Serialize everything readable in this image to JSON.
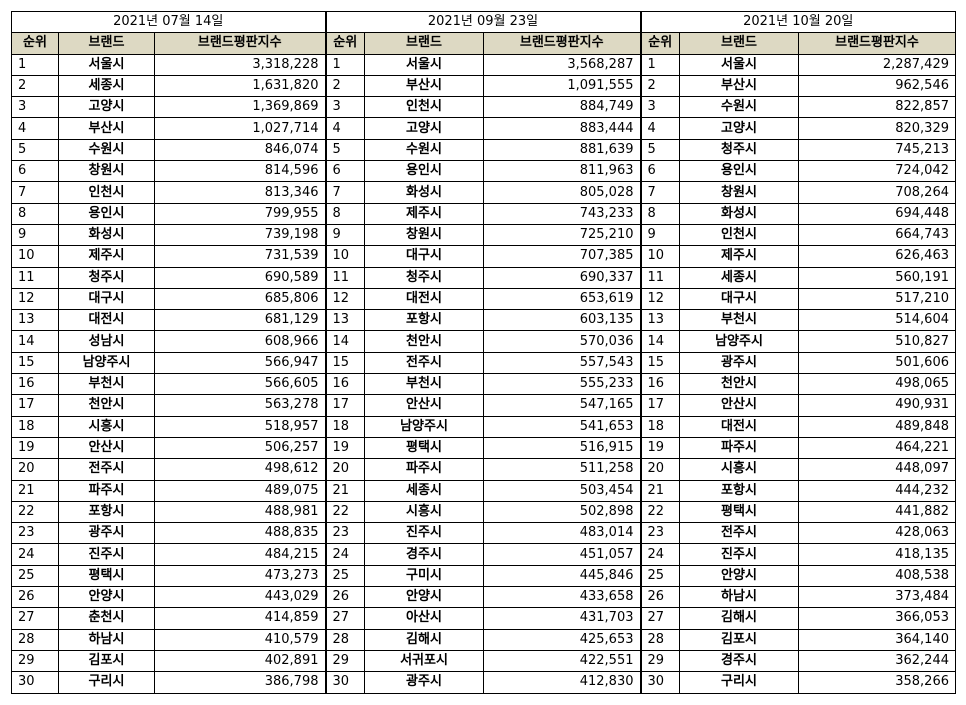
{
  "columns": {
    "rank": "순위",
    "brand": "브랜드",
    "score": "브랜드평판지수"
  },
  "periods": [
    {
      "date": "2021년 07월 14일",
      "rows": [
        {
          "rank": "1",
          "brand": "서울시",
          "score": "3,318,228"
        },
        {
          "rank": "2",
          "brand": "세종시",
          "score": "1,631,820"
        },
        {
          "rank": "3",
          "brand": "고양시",
          "score": "1,369,869"
        },
        {
          "rank": "4",
          "brand": "부산시",
          "score": "1,027,714"
        },
        {
          "rank": "5",
          "brand": "수원시",
          "score": "846,074"
        },
        {
          "rank": "6",
          "brand": "창원시",
          "score": "814,596"
        },
        {
          "rank": "7",
          "brand": "인천시",
          "score": "813,346"
        },
        {
          "rank": "8",
          "brand": "용인시",
          "score": "799,955"
        },
        {
          "rank": "9",
          "brand": "화성시",
          "score": "739,198"
        },
        {
          "rank": "10",
          "brand": "제주시",
          "score": "731,539"
        },
        {
          "rank": "11",
          "brand": "청주시",
          "score": "690,589"
        },
        {
          "rank": "12",
          "brand": "대구시",
          "score": "685,806"
        },
        {
          "rank": "13",
          "brand": "대전시",
          "score": "681,129"
        },
        {
          "rank": "14",
          "brand": "성남시",
          "score": "608,966"
        },
        {
          "rank": "15",
          "brand": "남양주시",
          "score": "566,947"
        },
        {
          "rank": "16",
          "brand": "부천시",
          "score": "566,605"
        },
        {
          "rank": "17",
          "brand": "천안시",
          "score": "563,278"
        },
        {
          "rank": "18",
          "brand": "시흥시",
          "score": "518,957"
        },
        {
          "rank": "19",
          "brand": "안산시",
          "score": "506,257"
        },
        {
          "rank": "20",
          "brand": "전주시",
          "score": "498,612"
        },
        {
          "rank": "21",
          "brand": "파주시",
          "score": "489,075"
        },
        {
          "rank": "22",
          "brand": "포항시",
          "score": "488,981"
        },
        {
          "rank": "23",
          "brand": "광주시",
          "score": "488,835"
        },
        {
          "rank": "24",
          "brand": "진주시",
          "score": "484,215"
        },
        {
          "rank": "25",
          "brand": "평택시",
          "score": "473,273"
        },
        {
          "rank": "26",
          "brand": "안양시",
          "score": "443,029"
        },
        {
          "rank": "27",
          "brand": "춘천시",
          "score": "414,859"
        },
        {
          "rank": "28",
          "brand": "하남시",
          "score": "410,579"
        },
        {
          "rank": "29",
          "brand": "김포시",
          "score": "402,891"
        },
        {
          "rank": "30",
          "brand": "구리시",
          "score": "386,798"
        }
      ]
    },
    {
      "date": "2021년 09월 23일",
      "rows": [
        {
          "rank": "1",
          "brand": "서울시",
          "score": "3,568,287"
        },
        {
          "rank": "2",
          "brand": "부산시",
          "score": "1,091,555"
        },
        {
          "rank": "3",
          "brand": "인천시",
          "score": "884,749"
        },
        {
          "rank": "4",
          "brand": "고양시",
          "score": "883,444"
        },
        {
          "rank": "5",
          "brand": "수원시",
          "score": "881,639"
        },
        {
          "rank": "6",
          "brand": "용인시",
          "score": "811,963"
        },
        {
          "rank": "7",
          "brand": "화성시",
          "score": "805,028"
        },
        {
          "rank": "8",
          "brand": "제주시",
          "score": "743,233"
        },
        {
          "rank": "9",
          "brand": "창원시",
          "score": "725,210"
        },
        {
          "rank": "10",
          "brand": "대구시",
          "score": "707,385"
        },
        {
          "rank": "11",
          "brand": "청주시",
          "score": "690,337"
        },
        {
          "rank": "12",
          "brand": "대전시",
          "score": "653,619"
        },
        {
          "rank": "13",
          "brand": "포항시",
          "score": "603,135"
        },
        {
          "rank": "14",
          "brand": "천안시",
          "score": "570,036"
        },
        {
          "rank": "15",
          "brand": "전주시",
          "score": "557,543"
        },
        {
          "rank": "16",
          "brand": "부천시",
          "score": "555,233"
        },
        {
          "rank": "17",
          "brand": "안산시",
          "score": "547,165"
        },
        {
          "rank": "18",
          "brand": "남양주시",
          "score": "541,653"
        },
        {
          "rank": "19",
          "brand": "평택시",
          "score": "516,915"
        },
        {
          "rank": "20",
          "brand": "파주시",
          "score": "511,258"
        },
        {
          "rank": "21",
          "brand": "세종시",
          "score": "503,454"
        },
        {
          "rank": "22",
          "brand": "시흥시",
          "score": "502,898"
        },
        {
          "rank": "23",
          "brand": "진주시",
          "score": "483,014"
        },
        {
          "rank": "24",
          "brand": "경주시",
          "score": "451,057"
        },
        {
          "rank": "25",
          "brand": "구미시",
          "score": "445,846"
        },
        {
          "rank": "26",
          "brand": "안양시",
          "score": "433,658"
        },
        {
          "rank": "27",
          "brand": "아산시",
          "score": "431,703"
        },
        {
          "rank": "28",
          "brand": "김해시",
          "score": "425,653"
        },
        {
          "rank": "29",
          "brand": "서귀포시",
          "score": "422,551"
        },
        {
          "rank": "30",
          "brand": "광주시",
          "score": "412,830"
        }
      ]
    },
    {
      "date": "2021년 10월 20일",
      "rows": [
        {
          "rank": "1",
          "brand": "서울시",
          "score": "2,287,429"
        },
        {
          "rank": "2",
          "brand": "부산시",
          "score": "962,546"
        },
        {
          "rank": "3",
          "brand": "수원시",
          "score": "822,857"
        },
        {
          "rank": "4",
          "brand": "고양시",
          "score": "820,329"
        },
        {
          "rank": "5",
          "brand": "청주시",
          "score": "745,213"
        },
        {
          "rank": "6",
          "brand": "용인시",
          "score": "724,042"
        },
        {
          "rank": "7",
          "brand": "창원시",
          "score": "708,264"
        },
        {
          "rank": "8",
          "brand": "화성시",
          "score": "694,448"
        },
        {
          "rank": "9",
          "brand": "인천시",
          "score": "664,743"
        },
        {
          "rank": "10",
          "brand": "제주시",
          "score": "626,463"
        },
        {
          "rank": "11",
          "brand": "세종시",
          "score": "560,191"
        },
        {
          "rank": "12",
          "brand": "대구시",
          "score": "517,210"
        },
        {
          "rank": "13",
          "brand": "부천시",
          "score": "514,604"
        },
        {
          "rank": "14",
          "brand": "남양주시",
          "score": "510,827"
        },
        {
          "rank": "15",
          "brand": "광주시",
          "score": "501,606"
        },
        {
          "rank": "16",
          "brand": "천안시",
          "score": "498,065"
        },
        {
          "rank": "17",
          "brand": "안산시",
          "score": "490,931"
        },
        {
          "rank": "18",
          "brand": "대전시",
          "score": "489,848"
        },
        {
          "rank": "19",
          "brand": "파주시",
          "score": "464,221"
        },
        {
          "rank": "20",
          "brand": "시흥시",
          "score": "448,097"
        },
        {
          "rank": "21",
          "brand": "포항시",
          "score": "444,232"
        },
        {
          "rank": "22",
          "brand": "평택시",
          "score": "441,882"
        },
        {
          "rank": "23",
          "brand": "전주시",
          "score": "428,063"
        },
        {
          "rank": "24",
          "brand": "진주시",
          "score": "418,135"
        },
        {
          "rank": "25",
          "brand": "안양시",
          "score": "408,538"
        },
        {
          "rank": "26",
          "brand": "하남시",
          "score": "373,484"
        },
        {
          "rank": "27",
          "brand": "김해시",
          "score": "366,053"
        },
        {
          "rank": "28",
          "brand": "김포시",
          "score": "364,140"
        },
        {
          "rank": "29",
          "brand": "경주시",
          "score": "362,244"
        },
        {
          "rank": "30",
          "brand": "구리시",
          "score": "358,266"
        }
      ]
    }
  ],
  "colors": {
    "header_bg": "#ddd9c3",
    "border": "#000000"
  }
}
